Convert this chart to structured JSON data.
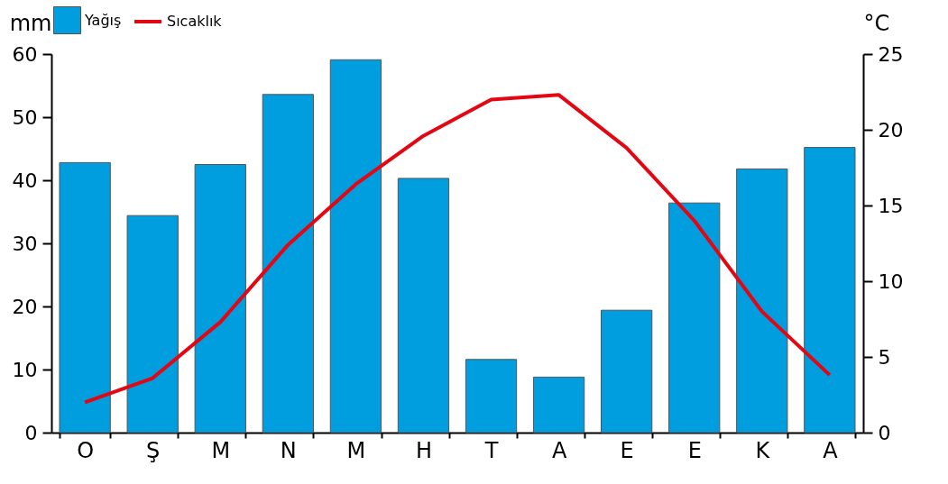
{
  "chart_data": {
    "type": "bar",
    "ylabel": "mm",
    "y2label": "°C",
    "categories": [
      "O",
      "Ş",
      "M",
      "N",
      "M",
      "H",
      "T",
      "A",
      "E",
      "E",
      "K",
      "A"
    ],
    "series": [
      {
        "name": "Yağış",
        "color": "#009ddf",
        "values": [
          42.8,
          34.4,
          42.5,
          53.6,
          59.1,
          40.3,
          11.6,
          8.8,
          19.4,
          36.4,
          41.8,
          45.2
        ]
      },
      {
        "name": "Sıcaklık",
        "type": "line",
        "axis": "y2",
        "color": "#e30613",
        "values": [
          2.0,
          3.6,
          7.3,
          12.4,
          16.4,
          19.6,
          22.0,
          22.3,
          18.8,
          14.0,
          8.0,
          3.8
        ]
      }
    ],
    "ylim": [
      0,
      60
    ],
    "yticks": [
      0,
      10,
      20,
      30,
      40,
      50,
      60
    ],
    "y2lim": [
      0,
      25
    ],
    "y2ticks": [
      0,
      5,
      10,
      15,
      20,
      25
    ],
    "grid": false,
    "legend": "top",
    "marker": "none",
    "line_style": "solid"
  }
}
